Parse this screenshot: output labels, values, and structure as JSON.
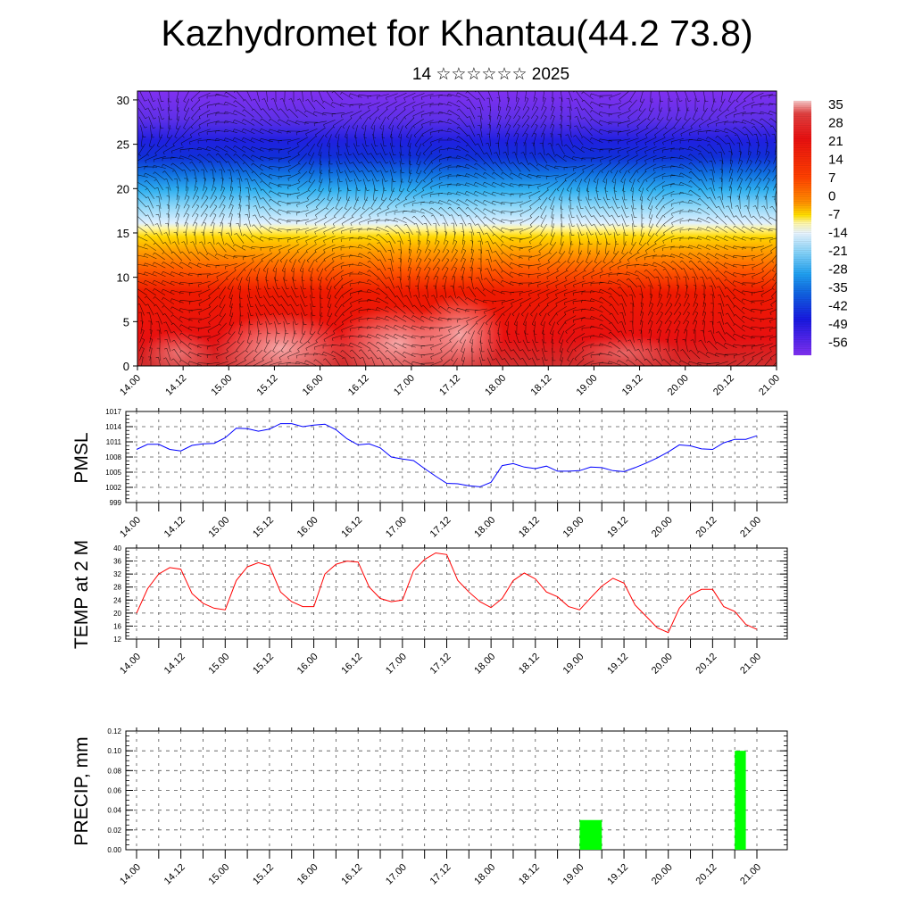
{
  "header": {
    "title": "Kazhydromet for Khantau(44.2 73.8)",
    "subtitle": "14 ☆☆☆☆☆☆ 2025"
  },
  "colors": {
    "pmsl_line": "#0000ff",
    "temp_line": "#ff0000",
    "precip_bar": "#00ff00",
    "wind_barbs": "#000000"
  },
  "chart_data": [
    {
      "id": "cross_section",
      "type": "heatmap",
      "title": "",
      "xlabel": "",
      "ylabel": "",
      "x_ticks": [
        "14.00",
        "14.12",
        "15.00",
        "15.12",
        "16.00",
        "16.12",
        "17.00",
        "17.12",
        "18.00",
        "18.12",
        "19.00",
        "19.12",
        "20.00",
        "20.12",
        "21.00"
      ],
      "y_ticks": [
        0,
        5,
        10,
        15,
        20,
        25,
        30
      ],
      "ylim": [
        0,
        31
      ],
      "colorbar_labels": [
        35,
        28,
        21,
        14,
        7,
        0,
        -7,
        -14,
        -21,
        -28,
        -35,
        -42,
        -49,
        -56
      ],
      "colorbar_range": [
        -60,
        42
      ],
      "overlay": "wind barbs (black)"
    },
    {
      "id": "pmsl",
      "type": "line",
      "ylabel": "PMSL",
      "ylim": [
        999,
        1017
      ],
      "y_ticks": [
        999,
        1002,
        1005,
        1008,
        1011,
        1014,
        1017
      ],
      "x_ticks": [
        "14.00",
        "14.12",
        "15.00",
        "15.12",
        "16.00",
        "16.12",
        "17.00",
        "17.12",
        "18.00",
        "18.12",
        "19.00",
        "19.12",
        "20.00",
        "20.12",
        "21.00"
      ],
      "x_range": [
        0,
        168
      ],
      "x_step_hours": 3,
      "values": [
        1009.5,
        1010.5,
        1010.5,
        1009.5,
        1009.2,
        1010.3,
        1010.6,
        1010.7,
        1011.8,
        1013.7,
        1013.6,
        1013.1,
        1013.5,
        1014.6,
        1014.6,
        1014.0,
        1014.3,
        1014.5,
        1013.4,
        1011.6,
        1010.4,
        1010.6,
        1009.8,
        1008.0,
        1007.6,
        1007.3,
        1005.7,
        1004.2,
        1002.8,
        1002.7,
        1002.3,
        1002.1,
        1003.0,
        1006.3,
        1006.7,
        1006.0,
        1005.7,
        1006.2,
        1005.2,
        1005.2,
        1005.3,
        1006.0,
        1005.9,
        1005.3,
        1005.1,
        1005.9,
        1006.8,
        1007.8,
        1009.0,
        1010.4,
        1010.2,
        1009.6,
        1009.5,
        1010.8,
        1011.5,
        1011.5,
        1012.2
      ]
    },
    {
      "id": "temp",
      "type": "line",
      "ylabel": "TEMP at 2 M",
      "ylim": [
        12,
        40
      ],
      "y_ticks": [
        12,
        16,
        20,
        24,
        28,
        32,
        36,
        40
      ],
      "x_ticks": [
        "14.00",
        "14.12",
        "15.00",
        "15.12",
        "16.00",
        "16.12",
        "17.00",
        "17.12",
        "18.00",
        "18.12",
        "19.00",
        "19.12",
        "20.00",
        "20.12",
        "21.00"
      ],
      "x_range": [
        0,
        168
      ],
      "x_step_hours": 3,
      "values": [
        20.0,
        27.5,
        32.0,
        34.0,
        33.5,
        26.0,
        23.0,
        21.5,
        21.0,
        30.0,
        34.2,
        35.5,
        34.5,
        26.5,
        23.5,
        22.0,
        22.0,
        32.0,
        35.0,
        36.0,
        35.7,
        28.0,
        24.5,
        23.5,
        24.0,
        33.0,
        36.5,
        38.5,
        38.0,
        30.0,
        26.5,
        23.5,
        21.7,
        24.5,
        30.0,
        32.3,
        30.5,
        26.5,
        25.0,
        22.0,
        21.0,
        24.7,
        28.3,
        30.7,
        29.2,
        22.5,
        19.0,
        15.5,
        14.0,
        21.5,
        25.5,
        27.3,
        27.3,
        22.0,
        20.5,
        16.5,
        15.0
      ]
    },
    {
      "id": "precip",
      "type": "bar",
      "ylabel": "PRECIP, mm",
      "ylim": [
        0,
        0.12
      ],
      "y_ticks": [
        "0.00",
        "0.02",
        "0.04",
        "0.06",
        "0.08",
        "0.10",
        "0.12"
      ],
      "x_ticks": [
        "14.00",
        "14.12",
        "15.00",
        "15.12",
        "16.00",
        "16.12",
        "17.00",
        "17.12",
        "18.00",
        "18.12",
        "19.00",
        "19.12",
        "20.00",
        "20.12",
        "21.00"
      ],
      "x_range": [
        0,
        168
      ],
      "bars": [
        {
          "start_hour": 120,
          "end_hour": 126,
          "value": 0.03
        },
        {
          "start_hour": 162,
          "end_hour": 165,
          "value": 0.1
        }
      ]
    }
  ]
}
